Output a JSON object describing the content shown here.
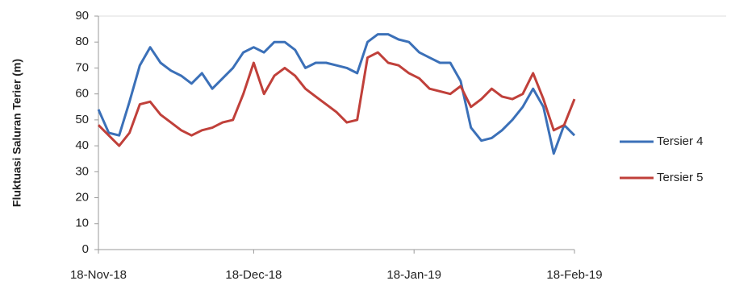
{
  "chart_data": {
    "type": "line",
    "y_label": "Fluktuasi  Saluran Terier (m)",
    "x": [
      "18-Nov-18",
      "20-Nov-18",
      "22-Nov-18",
      "24-Nov-18",
      "26-Nov-18",
      "28-Nov-18",
      "30-Nov-18",
      "2-Dec-18",
      "4-Dec-18",
      "6-Dec-18",
      "8-Dec-18",
      "10-Dec-18",
      "12-Dec-18",
      "14-Dec-18",
      "16-Dec-18",
      "18-Dec-18",
      "20-Dec-18",
      "22-Dec-18",
      "24-Dec-18",
      "26-Dec-18",
      "28-Dec-18",
      "30-Dec-18",
      "1-Jan-19",
      "3-Jan-19",
      "5-Jan-19",
      "7-Jan-19",
      "9-Jan-19",
      "11-Jan-19",
      "13-Jan-19",
      "15-Jan-19",
      "17-Jan-19",
      "19-Jan-19",
      "21-Jan-19",
      "23-Jan-19",
      "25-Jan-19",
      "27-Jan-19",
      "29-Jan-19",
      "31-Jan-19",
      "2-Feb-19",
      "4-Feb-19",
      "6-Feb-19",
      "8-Feb-19",
      "10-Feb-19",
      "12-Feb-19",
      "14-Feb-19",
      "16-Feb-19",
      "18-Feb-19"
    ],
    "series": [
      {
        "name": "Tersier 4",
        "color": "#3b70b8",
        "values": [
          54,
          45,
          44,
          57,
          71,
          78,
          72,
          69,
          67,
          64,
          68,
          62,
          66,
          70,
          76,
          78,
          76,
          80,
          80,
          77,
          70,
          72,
          72,
          71,
          70,
          68,
          80,
          83,
          83,
          81,
          80,
          76,
          74,
          72,
          72,
          65,
          47,
          42,
          43,
          46,
          50,
          55,
          62,
          55,
          37,
          48,
          44
        ]
      },
      {
        "name": "Tersier 5",
        "color": "#c0403a",
        "values": [
          48,
          44,
          40,
          45,
          56,
          57,
          52,
          49,
          46,
          44,
          46,
          47,
          49,
          50,
          60,
          72,
          60,
          67,
          70,
          67,
          62,
          59,
          56,
          53,
          49,
          50,
          74,
          76,
          72,
          71,
          68,
          66,
          62,
          61,
          60,
          63,
          55,
          58,
          62,
          59,
          58,
          60,
          68,
          58,
          46,
          48,
          58
        ]
      }
    ],
    "xlim": [
      "18-Nov-18",
      "18-Feb-19"
    ],
    "xticks": [
      "18-Nov-18",
      "18-Dec-18",
      "18-Jan-19",
      "18-Feb-19"
    ],
    "ylim": [
      0,
      90
    ],
    "yticks": [
      0,
      10,
      20,
      30,
      40,
      50,
      60,
      70,
      80,
      90
    ],
    "grid": false,
    "legend": "right"
  }
}
